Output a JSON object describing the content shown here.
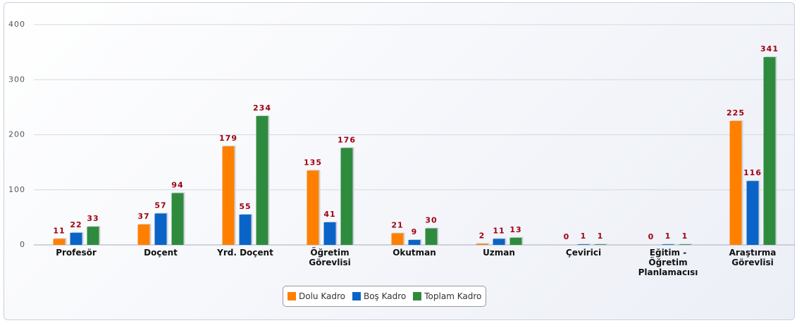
{
  "chart_data": {
    "type": "bar",
    "categories": [
      "Profesör",
      "Doçent",
      "Yrd. Doçent",
      "Öğretim\nGörevlisi",
      "Okutman",
      "Uzman",
      "Çevirici",
      "Eğitim -\nÖğretim\nPlanlamacısı",
      "Araştırma\nGörevlisi"
    ],
    "series": [
      {
        "name": "Dolu Kadro",
        "color": "#ff8000",
        "values": [
          11,
          37,
          179,
          135,
          21,
          2,
          0,
          0,
          225
        ]
      },
      {
        "name": "Boş Kadro",
        "color": "#0a64c8",
        "values": [
          22,
          57,
          55,
          41,
          9,
          11,
          1,
          1,
          116
        ]
      },
      {
        "name": "Toplam Kadro",
        "color": "#2e8b3e",
        "values": [
          33,
          94,
          234,
          176,
          30,
          13,
          1,
          1,
          341
        ]
      }
    ],
    "ylim": [
      0,
      400
    ],
    "yticks": [
      0,
      100,
      200,
      300,
      400
    ],
    "grid": true,
    "legend": "bottom"
  }
}
